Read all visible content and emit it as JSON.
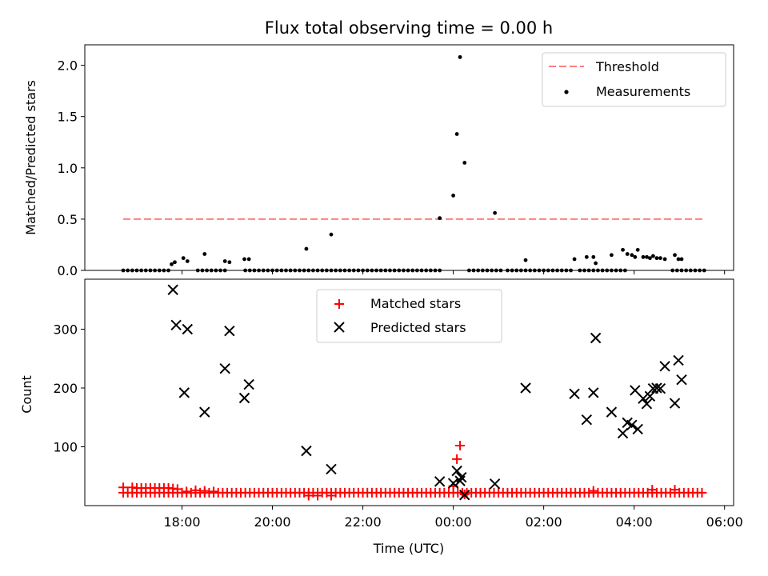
{
  "chart_data": [
    {
      "type": "scatter",
      "title": "Flux total observing time = 0.00 h",
      "ylabel": "Matched/Predicted stars",
      "xlabel": "",
      "xlim_hours": [
        15.85,
        30.2
      ],
      "ylim": [
        0,
        2.2
      ],
      "yticks": [
        0.0,
        0.5,
        1.0,
        1.5,
        2.0
      ],
      "ytick_labels": [
        "0.0",
        "0.5",
        "1.0",
        "1.5",
        "2.0"
      ],
      "grid": false,
      "legend": "top-right",
      "threshold": {
        "name": "Threshold",
        "value": 0.5,
        "x_range_hours": [
          16.7,
          29.55
        ],
        "color": "#ff7f7f"
      },
      "measurements": {
        "name": "Measurements",
        "color": "#000000",
        "zero_runs_hours": [
          [
            16.7,
            17.7
          ],
          [
            18.35,
            18.95
          ],
          [
            19.4,
            20.7
          ],
          [
            20.8,
            22.1
          ],
          [
            22.2,
            23.75
          ],
          [
            24.35,
            25.1
          ],
          [
            25.2,
            26.65
          ],
          [
            26.8,
            27.8
          ],
          [
            28.85,
            29.55
          ]
        ],
        "points": [
          [
            17.77,
            0.06
          ],
          [
            17.84,
            0.08
          ],
          [
            18.03,
            0.12
          ],
          [
            18.12,
            0.09
          ],
          [
            18.5,
            0.16
          ],
          [
            18.95,
            0.09
          ],
          [
            19.05,
            0.08
          ],
          [
            19.38,
            0.11
          ],
          [
            19.48,
            0.11
          ],
          [
            20.75,
            0.21
          ],
          [
            21.3,
            0.35
          ],
          [
            23.7,
            0.51
          ],
          [
            24.0,
            0.73
          ],
          [
            24.08,
            1.33
          ],
          [
            24.15,
            2.08
          ],
          [
            24.25,
            1.05
          ],
          [
            24.92,
            0.56
          ],
          [
            25.6,
            0.1
          ],
          [
            26.68,
            0.11
          ],
          [
            26.95,
            0.13
          ],
          [
            27.1,
            0.13
          ],
          [
            27.15,
            0.07
          ],
          [
            27.5,
            0.15
          ],
          [
            27.75,
            0.2
          ],
          [
            27.85,
            0.16
          ],
          [
            27.95,
            0.15
          ],
          [
            28.02,
            0.13
          ],
          [
            28.08,
            0.2
          ],
          [
            28.2,
            0.13
          ],
          [
            28.28,
            0.13
          ],
          [
            28.35,
            0.12
          ],
          [
            28.42,
            0.14
          ],
          [
            28.5,
            0.12
          ],
          [
            28.58,
            0.12
          ],
          [
            28.68,
            0.11
          ],
          [
            28.9,
            0.15
          ],
          [
            28.98,
            0.11
          ],
          [
            29.05,
            0.11
          ]
        ]
      }
    },
    {
      "type": "scatter",
      "title": "",
      "xlabel": "Time (UTC)",
      "ylabel": "Count",
      "xlim_hours": [
        15.85,
        30.2
      ],
      "ylim": [
        0,
        385
      ],
      "xticks_hours": [
        18,
        20,
        22,
        24,
        26,
        28,
        30
      ],
      "xtick_labels": [
        "18:00",
        "20:00",
        "22:00",
        "00:00",
        "02:00",
        "04:00",
        "06:00"
      ],
      "yticks": [
        100,
        200,
        300
      ],
      "ytick_labels": [
        "100",
        "200",
        "300"
      ],
      "grid": false,
      "legend": "upper center",
      "series": [
        {
          "name": "Matched stars",
          "marker": "+",
          "color": "#ff0000",
          "baseline": {
            "x_range_hours": [
              16.7,
              29.55
            ],
            "count": 22
          },
          "points": [
            [
              16.7,
              31
            ],
            [
              16.9,
              31
            ],
            [
              17.0,
              30
            ],
            [
              17.1,
              30
            ],
            [
              17.2,
              30
            ],
            [
              17.3,
              30
            ],
            [
              17.4,
              30
            ],
            [
              17.5,
              30
            ],
            [
              17.6,
              30
            ],
            [
              17.7,
              30
            ],
            [
              17.8,
              29
            ],
            [
              17.9,
              28
            ],
            [
              18.1,
              24
            ],
            [
              18.3,
              26
            ],
            [
              18.5,
              25
            ],
            [
              18.7,
              24
            ],
            [
              20.8,
              17
            ],
            [
              21.0,
              17
            ],
            [
              21.3,
              17
            ],
            [
              24.0,
              33
            ],
            [
              24.08,
              79
            ],
            [
              24.15,
              102
            ],
            [
              24.25,
              19
            ],
            [
              27.1,
              25
            ],
            [
              28.4,
              27
            ],
            [
              28.9,
              27
            ]
          ]
        },
        {
          "name": "Predicted stars",
          "marker": "x",
          "color": "#000000",
          "points": [
            [
              17.8,
              367
            ],
            [
              17.87,
              307
            ],
            [
              18.05,
              192
            ],
            [
              18.12,
              300
            ],
            [
              18.5,
              159
            ],
            [
              18.95,
              233
            ],
            [
              19.05,
              297
            ],
            [
              19.38,
              183
            ],
            [
              19.48,
              206
            ],
            [
              20.75,
              93
            ],
            [
              21.3,
              62
            ],
            [
              23.7,
              41
            ],
            [
              24.0,
              38
            ],
            [
              24.08,
              59
            ],
            [
              24.15,
              42
            ],
            [
              24.18,
              48
            ],
            [
              24.25,
              18
            ],
            [
              24.92,
              37
            ],
            [
              25.6,
              200
            ],
            [
              26.68,
              190
            ],
            [
              26.95,
              146
            ],
            [
              27.1,
              192
            ],
            [
              27.15,
              285
            ],
            [
              27.5,
              159
            ],
            [
              27.75,
              123
            ],
            [
              27.85,
              141
            ],
            [
              27.95,
              137
            ],
            [
              28.02,
              196
            ],
            [
              28.08,
              130
            ],
            [
              28.2,
              182
            ],
            [
              28.28,
              173
            ],
            [
              28.35,
              186
            ],
            [
              28.42,
              199
            ],
            [
              28.5,
              200
            ],
            [
              28.58,
              199
            ],
            [
              28.68,
              237
            ],
            [
              28.9,
              174
            ],
            [
              28.98,
              247
            ],
            [
              29.05,
              214
            ]
          ]
        }
      ]
    }
  ]
}
